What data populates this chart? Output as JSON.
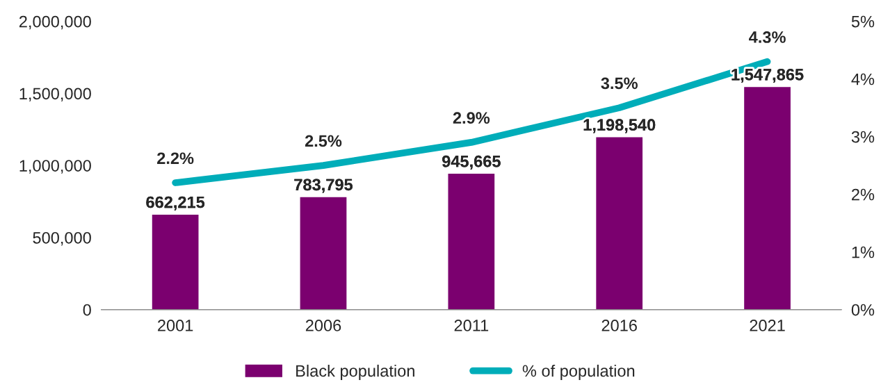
{
  "chart_data": {
    "type": "bar",
    "categories": [
      "2001",
      "2006",
      "2011",
      "2016",
      "2021"
    ],
    "series": [
      {
        "name": "Black population",
        "color": "#7b006f",
        "values": [
          662215,
          783795,
          945665,
          1198540,
          1547865
        ],
        "value_labels": [
          "662,215",
          "783,795",
          "945,665",
          "1,198,540",
          "1,547,865"
        ]
      },
      {
        "name": "% of population",
        "type": "line",
        "axis": "y2",
        "color": "#00adb9",
        "values": [
          2.2,
          2.5,
          2.9,
          3.5,
          4.3
        ],
        "value_labels": [
          "2.2%",
          "2.5%",
          "2.9%",
          "3.5%",
          "4.3%"
        ]
      }
    ],
    "ylim": [
      0,
      2000000
    ],
    "yticks": [
      0,
      {
        "value": 500000,
        "label": "500,000"
      },
      {
        "value": 1000000,
        "label": "1,000,000"
      },
      {
        "value": 1500000,
        "label": "1,500,000"
      },
      {
        "value": 2000000,
        "label": "2,000,000"
      }
    ],
    "y2lim": [
      0,
      5
    ],
    "y2ticks": [
      {
        "value": 0,
        "label": "0%"
      },
      {
        "value": 1,
        "label": "1%"
      },
      {
        "value": 2,
        "label": "2%"
      },
      {
        "value": 3,
        "label": "3%"
      },
      {
        "value": 4,
        "label": "4%"
      },
      {
        "value": 5,
        "label": "5%"
      }
    ],
    "legend": "bottom",
    "grid": false,
    "marker": "none",
    "line_style": "solid"
  }
}
